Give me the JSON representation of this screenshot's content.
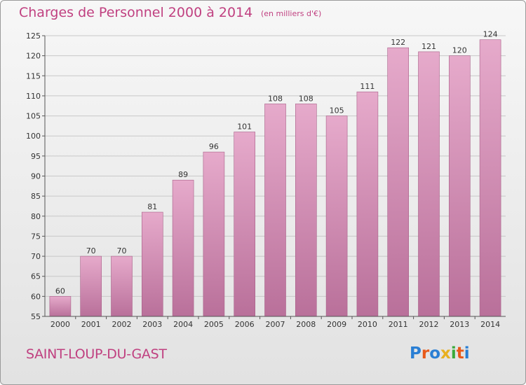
{
  "header": {
    "title": "Charges de Personnel 2000 à 2014",
    "subtitle": "(en milliers d'€)"
  },
  "footer": {
    "town": "SAINT-LOUP-DU-GAST",
    "logo_letters": [
      "P",
      "r",
      "o",
      "x",
      "i",
      "t",
      "i"
    ],
    "logo_colors": [
      "#2a7fd4",
      "#e85a1a",
      "#2a7fd4",
      "#e8b020",
      "#3aaa3a",
      "#e85a1a",
      "#2a7fd4"
    ]
  },
  "colors": {
    "bar_light": "#e6aacb",
    "bar_dark": "#b9709a",
    "text_accent": "#c04080",
    "grid": "#c8c8c8",
    "axis_text": "#333333"
  },
  "chart_data": {
    "type": "bar",
    "categories": [
      "2000",
      "2001",
      "2002",
      "2003",
      "2004",
      "2005",
      "2006",
      "2007",
      "2008",
      "2009",
      "2010",
      "2011",
      "2012",
      "2013",
      "2014"
    ],
    "values": [
      60,
      70,
      70,
      81,
      89,
      96,
      101,
      108,
      108,
      105,
      111,
      122,
      121,
      120,
      124
    ],
    "title": "Charges de Personnel 2000 à 2014",
    "subtitle": "(en milliers d'€)",
    "xlabel": "",
    "ylabel": "",
    "ylim": [
      55,
      125
    ],
    "yticks": [
      55,
      60,
      65,
      70,
      75,
      80,
      85,
      90,
      95,
      100,
      105,
      110,
      115,
      120,
      125
    ],
    "grid": true,
    "legend": "none"
  }
}
